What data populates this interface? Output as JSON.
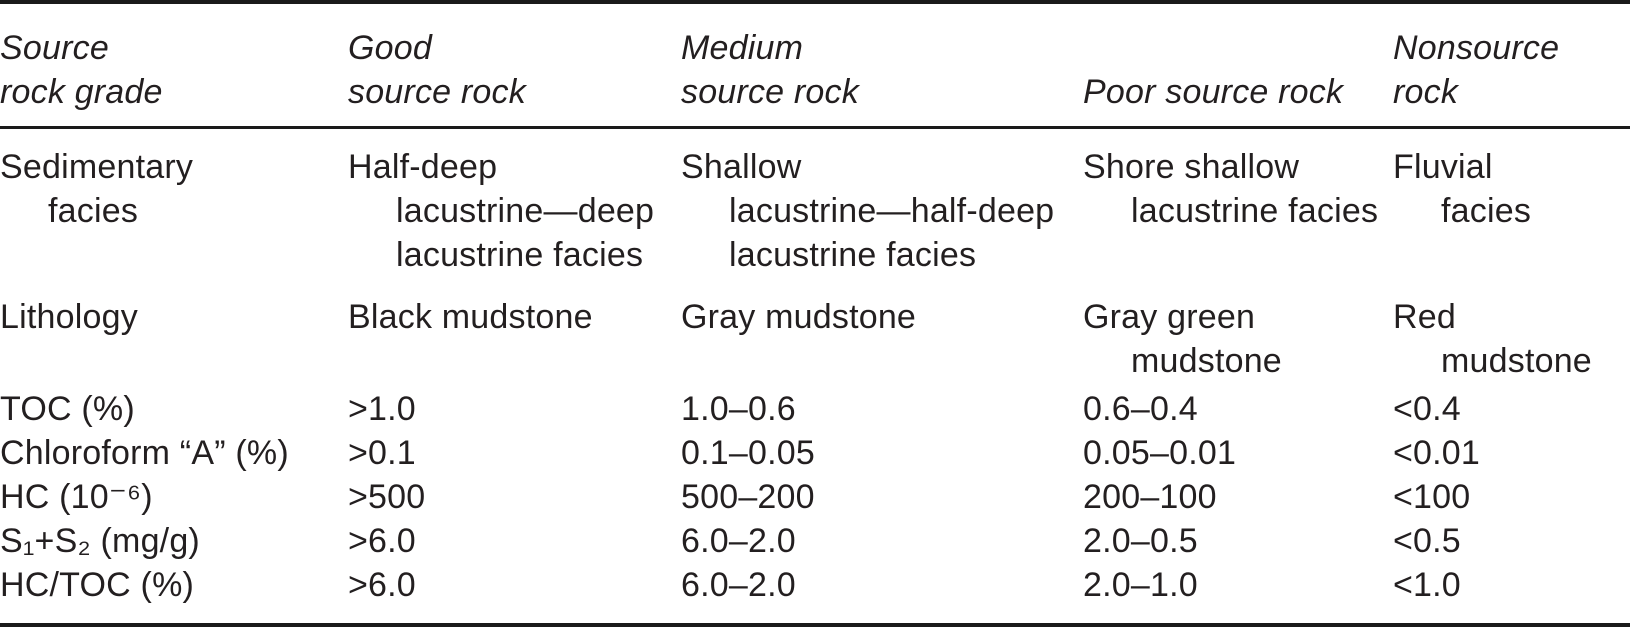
{
  "table": {
    "header": {
      "grade": "Source\nrock grade",
      "good": "Good\nsource rock",
      "medium": "Medium\nsource rock",
      "poor": "Poor source rock",
      "nonsource": "Nonsource\nrock"
    },
    "rows": [
      {
        "label": "Sedimentary\nfacies",
        "good": "Half-deep\nlacustrine—deep\nlacustrine facies",
        "medium": "Shallow\nlacustrine—half-deep\nlacustrine facies",
        "poor": "Shore shallow\nlacustrine facies",
        "nonsource": "Fluvial\nfacies"
      },
      {
        "label": "Lithology",
        "good": "Black mudstone",
        "medium": "Gray mudstone",
        "poor": "Gray green\nmudstone",
        "nonsource": "Red\nmudstone"
      },
      {
        "label": "TOC (%)",
        "good": ">1.0",
        "medium": "1.0–0.6",
        "poor": "0.6–0.4",
        "nonsource": "<0.4"
      },
      {
        "label": "Chloroform “A” (%)",
        "good": ">0.1",
        "medium": "0.1–0.05",
        "poor": "0.05–0.01",
        "nonsource": "<0.01"
      },
      {
        "label": "HC (10⁻⁶)",
        "good": ">500",
        "medium": "500–200",
        "poor": "200–100",
        "nonsource": "<100"
      },
      {
        "label": "S₁+S₂ (mg/g)",
        "good": ">6.0",
        "medium": "6.0–2.0",
        "poor": "2.0–0.5",
        "nonsource": "<0.5"
      },
      {
        "label": "HC/TOC (%)",
        "good": ">6.0",
        "medium": "6.0–2.0",
        "poor": "2.0–1.0",
        "nonsource": "<1.0"
      }
    ],
    "text_color": "#231f20",
    "rule_color": "#1a1a1a"
  }
}
